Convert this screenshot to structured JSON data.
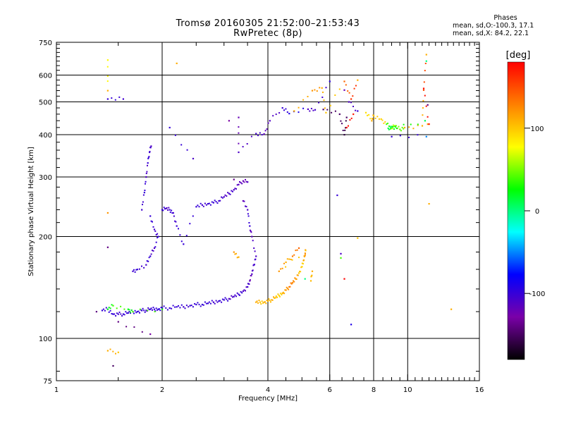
{
  "header": {
    "title_line1": "Tromsø 20160305 21:52:00–21:53:43",
    "title_line2": "RwPretec (8p)"
  },
  "stats": {
    "heading": "Phases",
    "line_o": "mean, sd,O:-100.3, 17.1",
    "line_x": "mean, sd,X:  84.2, 22.1"
  },
  "chart_data": {
    "type": "scatter",
    "xlabel": "Frequency [MHz]",
    "ylabel": "Stationary phase Virtual Height [km]",
    "x_scale": "log",
    "y_scale": "log",
    "xlim": [
      1,
      16
    ],
    "ylim": [
      75,
      750
    ],
    "x_ticks": [
      1,
      2,
      4,
      6,
      8,
      10,
      16
    ],
    "y_ticks": [
      75,
      100,
      200,
      300,
      400,
      500,
      600,
      750
    ],
    "grid": true,
    "colorbar": {
      "label": "[deg]",
      "range": [
        -180,
        180
      ],
      "ticks": [
        100,
        0,
        -100
      ],
      "colors": [
        "#000000",
        "#7a00a8",
        "#0000ff",
        "#00ffff",
        "#00ff00",
        "#ffff00",
        "#ff8000",
        "#ff0000"
      ]
    },
    "series": [
      {
        "values": [
          [
            1.35,
            121,
            -100
          ],
          [
            1.4,
            122,
            -95
          ],
          [
            1.45,
            118,
            -100
          ],
          [
            1.5,
            118,
            -105
          ],
          [
            1.55,
            118,
            -100
          ],
          [
            1.6,
            119,
            -100
          ],
          [
            1.65,
            120,
            -95
          ],
          [
            1.7,
            120,
            -100
          ],
          [
            1.75,
            121,
            -100
          ],
          [
            1.8,
            121,
            -105
          ],
          [
            1.85,
            122,
            -100
          ],
          [
            1.9,
            122,
            -100
          ],
          [
            1.95,
            122,
            -95
          ],
          [
            2.0,
            123,
            -100
          ],
          [
            2.1,
            123,
            -100
          ],
          [
            2.2,
            124,
            -100
          ],
          [
            2.3,
            124,
            -105
          ],
          [
            2.4,
            125,
            -100
          ],
          [
            2.5,
            126,
            -100
          ],
          [
            2.6,
            126,
            -100
          ],
          [
            2.7,
            127,
            -100
          ],
          [
            2.8,
            128,
            -105
          ],
          [
            2.9,
            129,
            -100
          ],
          [
            3.0,
            130,
            -100
          ],
          [
            3.1,
            131,
            -110
          ],
          [
            3.2,
            133,
            -105
          ],
          [
            3.3,
            135,
            -100
          ],
          [
            3.4,
            138,
            -110
          ],
          [
            3.5,
            142,
            -105
          ],
          [
            3.55,
            148,
            -120
          ],
          [
            3.6,
            155,
            -110
          ],
          [
            3.65,
            165,
            -105
          ],
          [
            3.7,
            175,
            -110
          ],
          [
            3.6,
            200,
            -115
          ],
          [
            3.55,
            215,
            -100
          ],
          [
            3.5,
            240,
            -110
          ],
          [
            3.4,
            255,
            -120
          ]
        ]
      },
      {
        "values": [
          [
            1.75,
            240,
            -105
          ],
          [
            1.78,
            270,
            -100
          ],
          [
            1.8,
            300,
            -110
          ],
          [
            1.82,
            330,
            -100
          ],
          [
            1.84,
            355,
            -105
          ],
          [
            1.86,
            370,
            -110
          ],
          [
            1.85,
            230,
            -100
          ],
          [
            1.9,
            210,
            -105
          ],
          [
            1.95,
            200,
            -100
          ],
          [
            1.9,
            185,
            -110
          ],
          [
            1.85,
            175,
            -100
          ],
          [
            1.8,
            165,
            -105
          ],
          [
            1.7,
            160,
            -100
          ],
          [
            1.65,
            158,
            -105
          ],
          [
            2.0,
            240,
            -100
          ],
          [
            2.05,
            242,
            -110
          ],
          [
            2.1,
            240,
            -100
          ],
          [
            2.15,
            235,
            -105
          ],
          [
            2.2,
            215,
            -100
          ],
          [
            2.3,
            190,
            -100
          ],
          [
            2.5,
            245,
            -100
          ],
          [
            2.6,
            248,
            -105
          ],
          [
            2.7,
            250,
            -100
          ],
          [
            2.8,
            252,
            -100
          ],
          [
            2.9,
            255,
            -105
          ],
          [
            3.0,
            262,
            -110
          ],
          [
            3.1,
            268,
            -105
          ],
          [
            3.2,
            275,
            -110
          ],
          [
            3.3,
            285,
            -115
          ],
          [
            3.4,
            292,
            -120
          ],
          [
            3.5,
            290,
            -110
          ]
        ]
      },
      {
        "values": [
          [
            3.7,
            128,
            110
          ],
          [
            3.8,
            128,
            100
          ],
          [
            3.9,
            128,
            110
          ],
          [
            4.0,
            129,
            105
          ],
          [
            4.1,
            130,
            110
          ],
          [
            4.2,
            132,
            100
          ],
          [
            4.3,
            134,
            95
          ],
          [
            4.4,
            136,
            110
          ],
          [
            4.5,
            139,
            120
          ],
          [
            4.6,
            142,
            130
          ],
          [
            4.7,
            146,
            125
          ],
          [
            4.8,
            150,
            115
          ],
          [
            4.9,
            156,
            100
          ],
          [
            5.0,
            163,
            95
          ],
          [
            5.05,
            170,
            110
          ],
          [
            5.1,
            176,
            120
          ],
          [
            5.12,
            182,
            100
          ],
          [
            4.3,
            158,
            120
          ],
          [
            4.5,
            168,
            110
          ],
          [
            4.7,
            175,
            130
          ],
          [
            4.9,
            185,
            140
          ],
          [
            3.3,
            174,
            110
          ],
          [
            3.2,
            180,
            120
          ],
          [
            5.3,
            148,
            105
          ],
          [
            5.35,
            158,
            110
          ]
        ]
      },
      {
        "values": [
          [
            1.4,
            510,
            -100
          ],
          [
            1.55,
            510,
            -105
          ],
          [
            2.1,
            420,
            -100
          ],
          [
            2.45,
            340,
            -110
          ],
          [
            3.3,
            450,
            -120
          ],
          [
            3.3,
            355,
            -110
          ],
          [
            3.7,
            403,
            -105
          ],
          [
            3.9,
            402,
            -115
          ],
          [
            4.05,
            440,
            -110
          ],
          [
            4.4,
            480,
            -100
          ],
          [
            4.6,
            462,
            -90
          ],
          [
            5.2,
            476,
            -110
          ],
          [
            5.45,
            474,
            -105
          ],
          [
            6.0,
            575,
            -95
          ],
          [
            6.3,
            265,
            -100
          ],
          [
            6.45,
            178,
            -110
          ],
          [
            6.6,
            542,
            -120
          ],
          [
            6.9,
            110,
            -90
          ],
          [
            6.8,
            500,
            -110
          ],
          [
            7.2,
            470,
            -100
          ],
          [
            9.0,
            395,
            -100
          ],
          [
            11.3,
            395,
            -50
          ]
        ]
      },
      {
        "values": [
          [
            1.4,
            665,
            80
          ],
          [
            1.4,
            540,
            110
          ],
          [
            1.4,
            235,
            120
          ],
          [
            1.4,
            92,
            110
          ],
          [
            1.5,
            91,
            100
          ],
          [
            2.2,
            650,
            110
          ],
          [
            4.75,
            470,
            110
          ],
          [
            5.35,
            540,
            120
          ],
          [
            5.7,
            550,
            110
          ],
          [
            5.85,
            465,
            100
          ],
          [
            6.6,
            575,
            140
          ],
          [
            6.9,
            510,
            160
          ],
          [
            7.2,
            580,
            110
          ],
          [
            7.2,
            198,
            100
          ],
          [
            7.6,
            465,
            90
          ],
          [
            7.9,
            440,
            110
          ],
          [
            8.0,
            455,
            100
          ],
          [
            8.4,
            445,
            95
          ],
          [
            8.7,
            430,
            40
          ],
          [
            9.0,
            418,
            60
          ],
          [
            9.2,
            425,
            50
          ],
          [
            9.5,
            415,
            45
          ],
          [
            9.8,
            420,
            110
          ],
          [
            11.0,
            425,
            110
          ],
          [
            11.1,
            542,
            150
          ],
          [
            11.3,
            690,
            110
          ],
          [
            11.4,
            430,
            120
          ],
          [
            11.5,
            250,
            110
          ],
          [
            13.3,
            122,
            110
          ]
        ]
      },
      {
        "values": [
          [
            1.4,
            122,
            20
          ],
          [
            1.45,
            125,
            40
          ],
          [
            1.6,
            122,
            20
          ],
          [
            1.65,
            120,
            40
          ],
          [
            2.0,
            122,
            30
          ],
          [
            5.1,
            150,
            0
          ],
          [
            8.8,
            418,
            10
          ],
          [
            9.0,
            423,
            20
          ],
          [
            9.3,
            418,
            30
          ],
          [
            11.2,
            440,
            10
          ],
          [
            11.3,
            660,
            0
          ],
          [
            6.45,
            173,
            40
          ]
        ]
      },
      {
        "values": [
          [
            1.45,
            83,
            -150
          ],
          [
            1.5,
            112,
            -140
          ],
          [
            1.85,
            103,
            -130
          ],
          [
            3.2,
            295,
            -140
          ],
          [
            3.1,
            440,
            -130
          ],
          [
            5.75,
            475,
            -150
          ],
          [
            6.4,
            460,
            -150
          ],
          [
            6.6,
            400,
            -160
          ],
          [
            6.7,
            450,
            -150
          ],
          [
            11.4,
            490,
            -140
          ],
          [
            1.3,
            120,
            -140
          ],
          [
            1.4,
            186,
            -140
          ]
        ]
      },
      {
        "values": [
          [
            6.6,
            150,
            180
          ],
          [
            6.7,
            420,
            175
          ],
          [
            7.0,
            460,
            170
          ],
          [
            11.1,
            548,
            175
          ],
          [
            11.5,
            430,
            170
          ]
        ]
      }
    ]
  }
}
